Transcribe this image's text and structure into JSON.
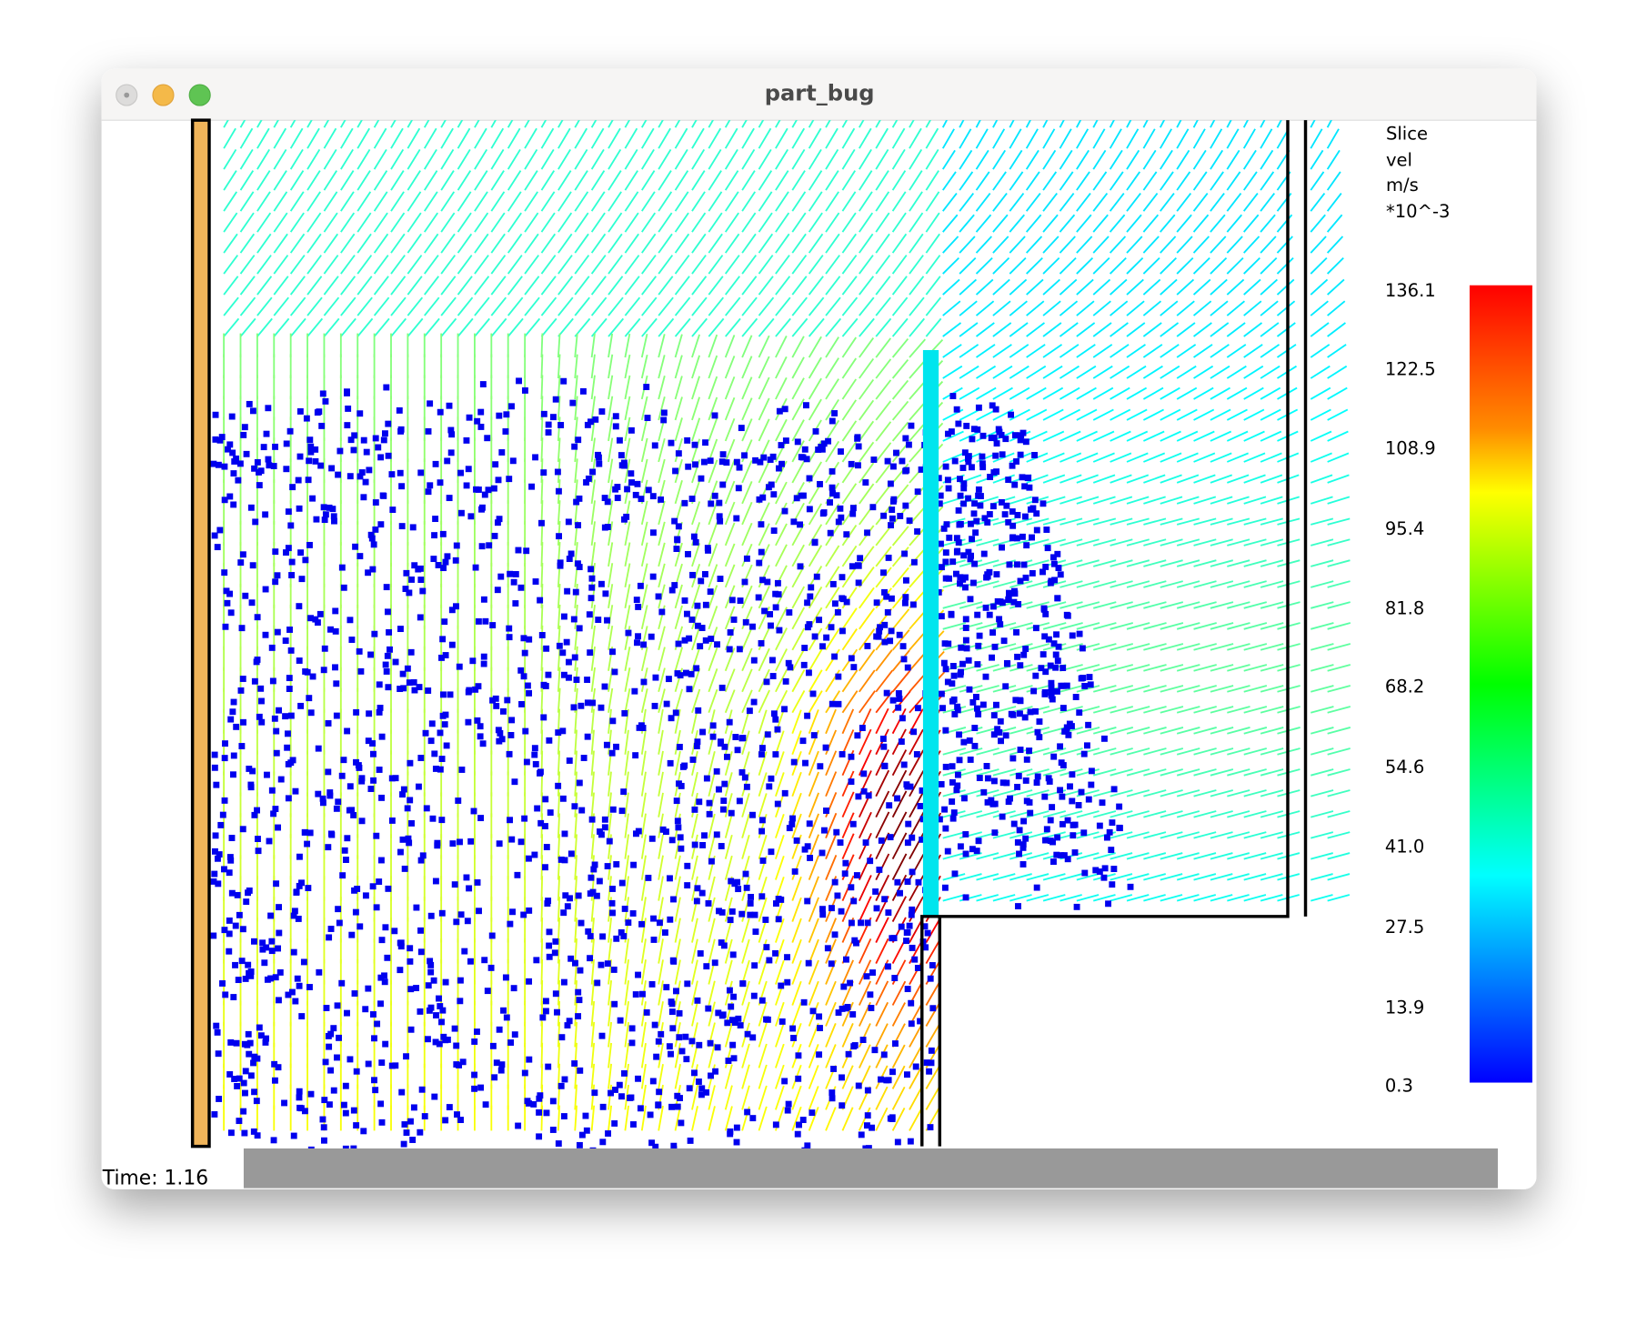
{
  "window": {
    "title": "part_bug"
  },
  "colorbar": {
    "heading": [
      "Slice",
      "vel",
      "m/s",
      "*10^-3"
    ],
    "labels": [
      "136.1",
      "122.5",
      "108.9",
      "95.4",
      "81.8",
      "68.2",
      "54.6",
      "41.0",
      "27.5",
      "13.9",
      "0.3"
    ]
  },
  "status": {
    "time": "Time: 1.16"
  }
}
